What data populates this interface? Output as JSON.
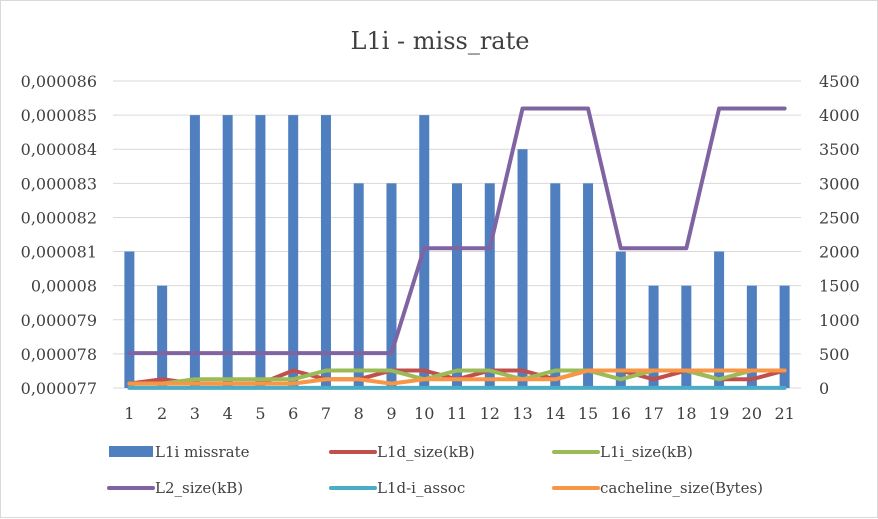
{
  "chart_data": {
    "type": "bar+line",
    "title": "L1i - miss_rate",
    "categories": [
      "1",
      "2",
      "3",
      "4",
      "5",
      "6",
      "7",
      "8",
      "9",
      "10",
      "11",
      "12",
      "13",
      "14",
      "15",
      "16",
      "17",
      "18",
      "19",
      "20",
      "21"
    ],
    "y_left": {
      "min": 7.7e-05,
      "max": 8.6e-05,
      "ticks": [
        "0,000077",
        "0,000078",
        "0,000079",
        "0,00008",
        "0,000081",
        "0,000082",
        "0,000083",
        "0,000084",
        "0,000085",
        "0,000086"
      ],
      "tick_values": [
        7.7e-05,
        7.8e-05,
        7.9e-05,
        8e-05,
        8.1e-05,
        8.2e-05,
        8.3e-05,
        8.4e-05,
        8.5e-05,
        8.6e-05
      ]
    },
    "y_right": {
      "min": 0,
      "max": 4500,
      "ticks": [
        "0",
        "500",
        "1000",
        "1500",
        "2000",
        "2500",
        "3000",
        "3500",
        "4000",
        "4500"
      ],
      "tick_values": [
        0,
        500,
        1000,
        1500,
        2000,
        2500,
        3000,
        3500,
        4000,
        4500
      ]
    },
    "grid": true,
    "legend_position": "bottom",
    "series": [
      {
        "name": "L1i missrate",
        "kind": "bar",
        "axis": "left",
        "color": "#4f7fbf",
        "values": [
          8.1e-05,
          8e-05,
          8.5e-05,
          8.5e-05,
          8.5e-05,
          8.5e-05,
          8.5e-05,
          8.3e-05,
          8.3e-05,
          8.5e-05,
          8.3e-05,
          8.3e-05,
          8.4e-05,
          8.3e-05,
          8.3e-05,
          8.1e-05,
          8e-05,
          8e-05,
          8.1e-05,
          8e-05,
          8e-05
        ]
      },
      {
        "name": "L1d_size(kB)",
        "kind": "line",
        "axis": "right",
        "color": "#c0504d",
        "values": [
          64,
          128,
          64,
          64,
          64,
          256,
          128,
          128,
          256,
          256,
          128,
          256,
          256,
          128,
          256,
          256,
          128,
          256,
          128,
          128,
          256
        ]
      },
      {
        "name": "L1i_size(kB)",
        "kind": "line",
        "axis": "right",
        "color": "#9bbb59",
        "values": [
          64,
          64,
          128,
          128,
          128,
          128,
          256,
          256,
          256,
          128,
          256,
          256,
          128,
          256,
          256,
          128,
          256,
          256,
          128,
          256,
          256
        ]
      },
      {
        "name": "L2_size(kB)",
        "kind": "line",
        "axis": "right",
        "color": "#8064a2",
        "values": [
          512,
          512,
          512,
          512,
          512,
          512,
          512,
          512,
          512,
          2048,
          2048,
          2048,
          4096,
          4096,
          4096,
          2048,
          2048,
          2048,
          4096,
          4096,
          4096
        ]
      },
      {
        "name": "L1d-i_assoc",
        "kind": "line",
        "axis": "right",
        "color": "#4bacc6",
        "values": [
          2,
          2,
          2,
          2,
          2,
          2,
          2,
          2,
          2,
          2,
          2,
          2,
          2,
          2,
          2,
          2,
          2,
          2,
          2,
          2,
          2
        ]
      },
      {
        "name": "cacheline_size(Bytes)",
        "kind": "line",
        "axis": "right",
        "color": "#f79646",
        "values": [
          64,
          64,
          64,
          64,
          64,
          64,
          128,
          128,
          64,
          128,
          128,
          128,
          128,
          128,
          256,
          256,
          256,
          256,
          256,
          256,
          256
        ]
      }
    ]
  }
}
